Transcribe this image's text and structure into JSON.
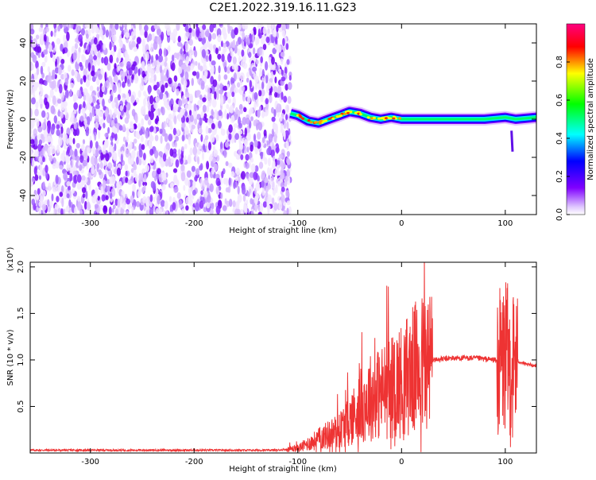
{
  "title": "C2E1.2022.319.16.11.G23",
  "chart_data": [
    {
      "type": "heatmap",
      "title": "C2E1.2022.319.16.11.G23",
      "xlabel": "Height of straight line (km)",
      "ylabel": "Frequency (Hz)",
      "xlim": [
        -358,
        130
      ],
      "ylim": [
        -50,
        50
      ],
      "xticks": [
        -300,
        -200,
        -100,
        0,
        100
      ],
      "yticks": [
        -40,
        -20,
        0,
        20,
        40
      ],
      "noise_region_x": [
        -358,
        -107
      ],
      "signal_band": [
        {
          "x": -107,
          "y": 3
        },
        {
          "x": -100,
          "y": 2
        },
        {
          "x": -90,
          "y": -1
        },
        {
          "x": -80,
          "y": -2
        },
        {
          "x": -70,
          "y": 0
        },
        {
          "x": -60,
          "y": 2
        },
        {
          "x": -50,
          "y": 4
        },
        {
          "x": -40,
          "y": 3
        },
        {
          "x": -30,
          "y": 1
        },
        {
          "x": -20,
          "y": 0
        },
        {
          "x": -10,
          "y": 1
        },
        {
          "x": 0,
          "y": 0
        },
        {
          "x": 20,
          "y": 0
        },
        {
          "x": 40,
          "y": 0
        },
        {
          "x": 60,
          "y": 0
        },
        {
          "x": 80,
          "y": 0
        },
        {
          "x": 100,
          "y": 1
        },
        {
          "x": 110,
          "y": 0
        },
        {
          "x": 130,
          "y": 1
        }
      ],
      "colorbar": {
        "label": "Normalized spectral amplitude",
        "range": [
          0,
          1
        ],
        "ticks": [
          "0.0",
          "0.2",
          "0.4",
          "0.6",
          "0.8"
        ],
        "colors": [
          "#ffffff",
          "#8000ff",
          "#0000ff",
          "#00ffff",
          "#00ff00",
          "#ffff00",
          "#ff0000",
          "#ff0080"
        ]
      },
      "grid": false
    },
    {
      "type": "line",
      "xlabel": "Height of straight line (km)",
      "ylabel": "SNR (10 * v/v)",
      "y_multiplier_label": "(x10⁴)",
      "xlim": [
        -358,
        130
      ],
      "ylim": [
        0,
        2.05
      ],
      "xticks": [
        -300,
        -200,
        -100,
        0,
        100
      ],
      "yticks": [
        "0.5",
        "1.0",
        "1.5",
        "2.0"
      ],
      "series": [
        {
          "color": "#ee3333",
          "x": [
            -358,
            -300,
            -200,
            -120,
            -100,
            -90,
            -80,
            -70,
            -60,
            -50,
            -40,
            -30,
            -20,
            -10,
            0,
            10,
            20,
            30,
            40,
            50,
            60,
            70,
            80,
            90,
            95,
            100,
            105,
            110,
            120,
            130
          ],
          "y": [
            0.03,
            0.03,
            0.03,
            0.03,
            0.05,
            0.1,
            0.15,
            0.2,
            0.25,
            0.35,
            0.5,
            0.6,
            0.65,
            0.7,
            0.78,
            0.88,
            0.96,
            1.0,
            1.01,
            1.02,
            1.02,
            1.02,
            1.01,
            1.0,
            0.95,
            1.05,
            0.9,
            1.0,
            0.95,
            0.94
          ]
        }
      ],
      "grid": false
    }
  ]
}
